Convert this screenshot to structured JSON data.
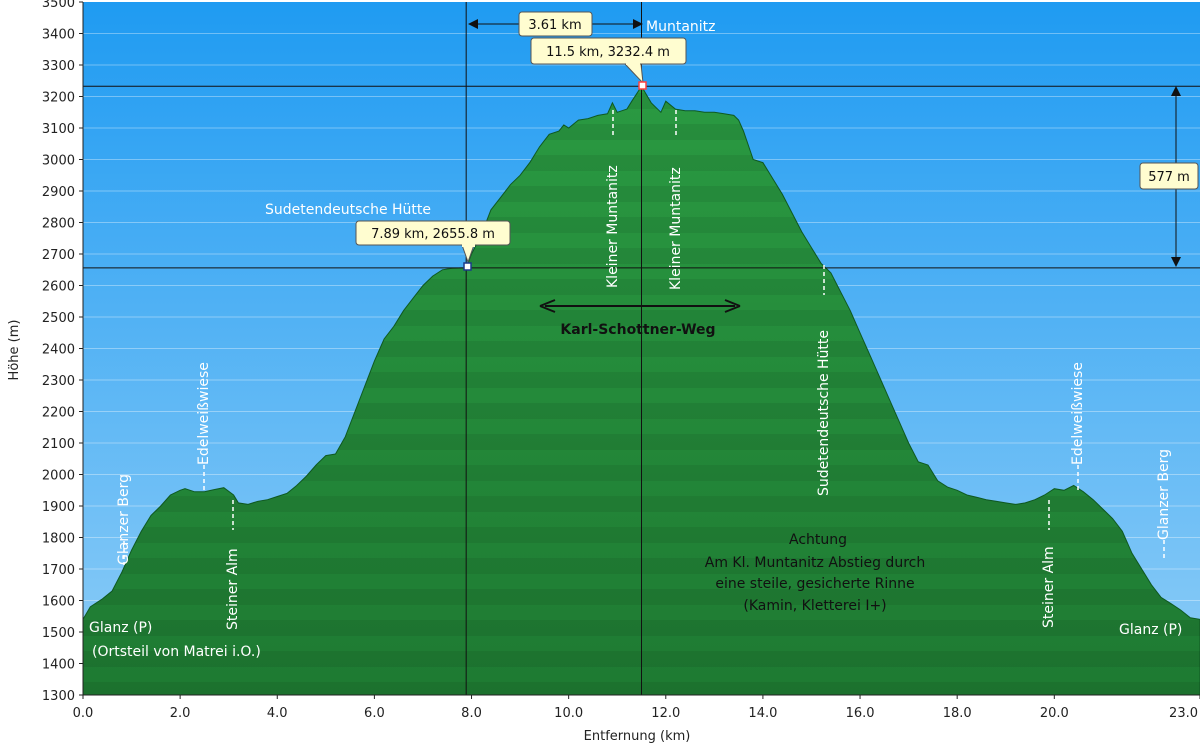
{
  "chart_data": {
    "type": "area",
    "xlabel": "Entfernung   (km)",
    "ylabel": "Höhe (m)",
    "xlim": [
      0,
      23
    ],
    "ylim": [
      1300,
      3500
    ],
    "x_ticks": [
      "0.0",
      "2.0",
      "4.0",
      "6.0",
      "8.0",
      "10.0",
      "12.0",
      "14.0",
      "16.0",
      "18.0",
      "20.0",
      "23.0"
    ],
    "y_ticks": [
      "1300",
      "1400",
      "1500",
      "1600",
      "1700",
      "1800",
      "1900",
      "2000",
      "2100",
      "2200",
      "2300",
      "2400",
      "2500",
      "2600",
      "2700",
      "2800",
      "2900",
      "3000",
      "3100",
      "3200",
      "3300",
      "3400",
      "3500"
    ],
    "grid": true,
    "series": [
      {
        "x": [
          0.0,
          0.15,
          0.4,
          0.6,
          0.8,
          1.0,
          1.2,
          1.4,
          1.6,
          1.8,
          2.0,
          2.1,
          2.3,
          2.5,
          2.7,
          2.9,
          3.1,
          3.2,
          3.4,
          3.6,
          3.8,
          4.0,
          4.2,
          4.4,
          4.6,
          4.8,
          5.0,
          5.2,
          5.4,
          5.6,
          5.8,
          6.0,
          6.2,
          6.4,
          6.6,
          6.8,
          7.0,
          7.2,
          7.4,
          7.6,
          7.8,
          7.89,
          8.0,
          8.2,
          8.4,
          8.6,
          8.8,
          9.0,
          9.2,
          9.4,
          9.6,
          9.8,
          9.9,
          10.0,
          10.2,
          10.4,
          10.6,
          10.8,
          10.9,
          11.0,
          11.2,
          11.3,
          11.5,
          11.7,
          11.9,
          12.0,
          12.2,
          12.4,
          12.6,
          12.8,
          13.0,
          13.2,
          13.4,
          13.5,
          13.6,
          13.8,
          14.0,
          14.2,
          14.4,
          14.6,
          14.8,
          15.0,
          15.2,
          15.4,
          15.6,
          15.8,
          16.0,
          16.2,
          16.4,
          16.6,
          16.8,
          17.0,
          17.2,
          17.4,
          17.6,
          17.8,
          18.0,
          18.2,
          18.4,
          18.6,
          18.8,
          19.0,
          19.2,
          19.4,
          19.6,
          19.8,
          20.0,
          20.2,
          20.4,
          20.6,
          20.8,
          21.0,
          21.2,
          21.4,
          21.6,
          21.8,
          22.0,
          22.2,
          22.4,
          22.6,
          22.8,
          23.0
        ],
        "y": [
          1540,
          1580,
          1605,
          1630,
          1690,
          1760,
          1820,
          1870,
          1900,
          1935,
          1950,
          1955,
          1945,
          1945,
          1952,
          1958,
          1935,
          1910,
          1905,
          1915,
          1920,
          1930,
          1940,
          1965,
          1995,
          2030,
          2060,
          2065,
          2120,
          2200,
          2280,
          2360,
          2430,
          2470,
          2520,
          2560,
          2600,
          2630,
          2650,
          2655,
          2656,
          2655.8,
          2700,
          2760,
          2840,
          2880,
          2920,
          2950,
          2990,
          3040,
          3080,
          3090,
          3110,
          3100,
          3125,
          3130,
          3140,
          3145,
          3180,
          3150,
          3160,
          3185,
          3232.4,
          3180,
          3150,
          3185,
          3160,
          3155,
          3155,
          3150,
          3150,
          3145,
          3140,
          3125,
          3090,
          3000,
          2990,
          2940,
          2890,
          2830,
          2770,
          2720,
          2670,
          2640,
          2580,
          2520,
          2450,
          2380,
          2310,
          2240,
          2170,
          2100,
          2040,
          2030,
          1980,
          1960,
          1950,
          1935,
          1928,
          1920,
          1915,
          1910,
          1905,
          1910,
          1920,
          1935,
          1955,
          1950,
          1965,
          1945,
          1920,
          1890,
          1860,
          1820,
          1750,
          1700,
          1650,
          1610,
          1590,
          1570,
          1545,
          1540
        ]
      }
    ],
    "markers": [
      {
        "x": 7.89,
        "y": 2655.8,
        "label": "7.89 km, 2655.8 m"
      },
      {
        "x": 11.5,
        "y": 3232.4,
        "label": "11.5 km, 3232.4 m"
      }
    ],
    "measures": {
      "distance": "3.61 km",
      "height_diff": "577 m"
    },
    "annotations": {
      "muntanitz": "Muntanitz",
      "sudeten_top": "Sudetendeutsche Hütte",
      "weg": "Karl-Schottner-Weg",
      "glanz_left": "Glanz (P)",
      "ortsteil": "(Ortsteil von Matrei i.O.)",
      "glanz_right": "Glanz (P)",
      "vertical": [
        "Glanzer Berg",
        "Edelweißwiese",
        "Steiner Alm",
        "Kleiner Muntanitz",
        "Kleiner Muntanitz",
        "Sudetendeutsche Hütte",
        "Steiner Alm",
        "Edelweißwiese",
        "Glanzer Berg"
      ],
      "achtung": [
        "Achtung",
        "Am Kl. Muntanitz Abstieg durch",
        "eine steile, gesicherte Rinne",
        "(Kamin, Kletterei I+)"
      ]
    },
    "colors": {
      "sky_top": "#1f9bf2",
      "sky_bottom": "#8ecdf7",
      "mountain_dark": "#1d7d33",
      "mountain_light": "#2ea446",
      "marker": "#ff4040"
    }
  }
}
